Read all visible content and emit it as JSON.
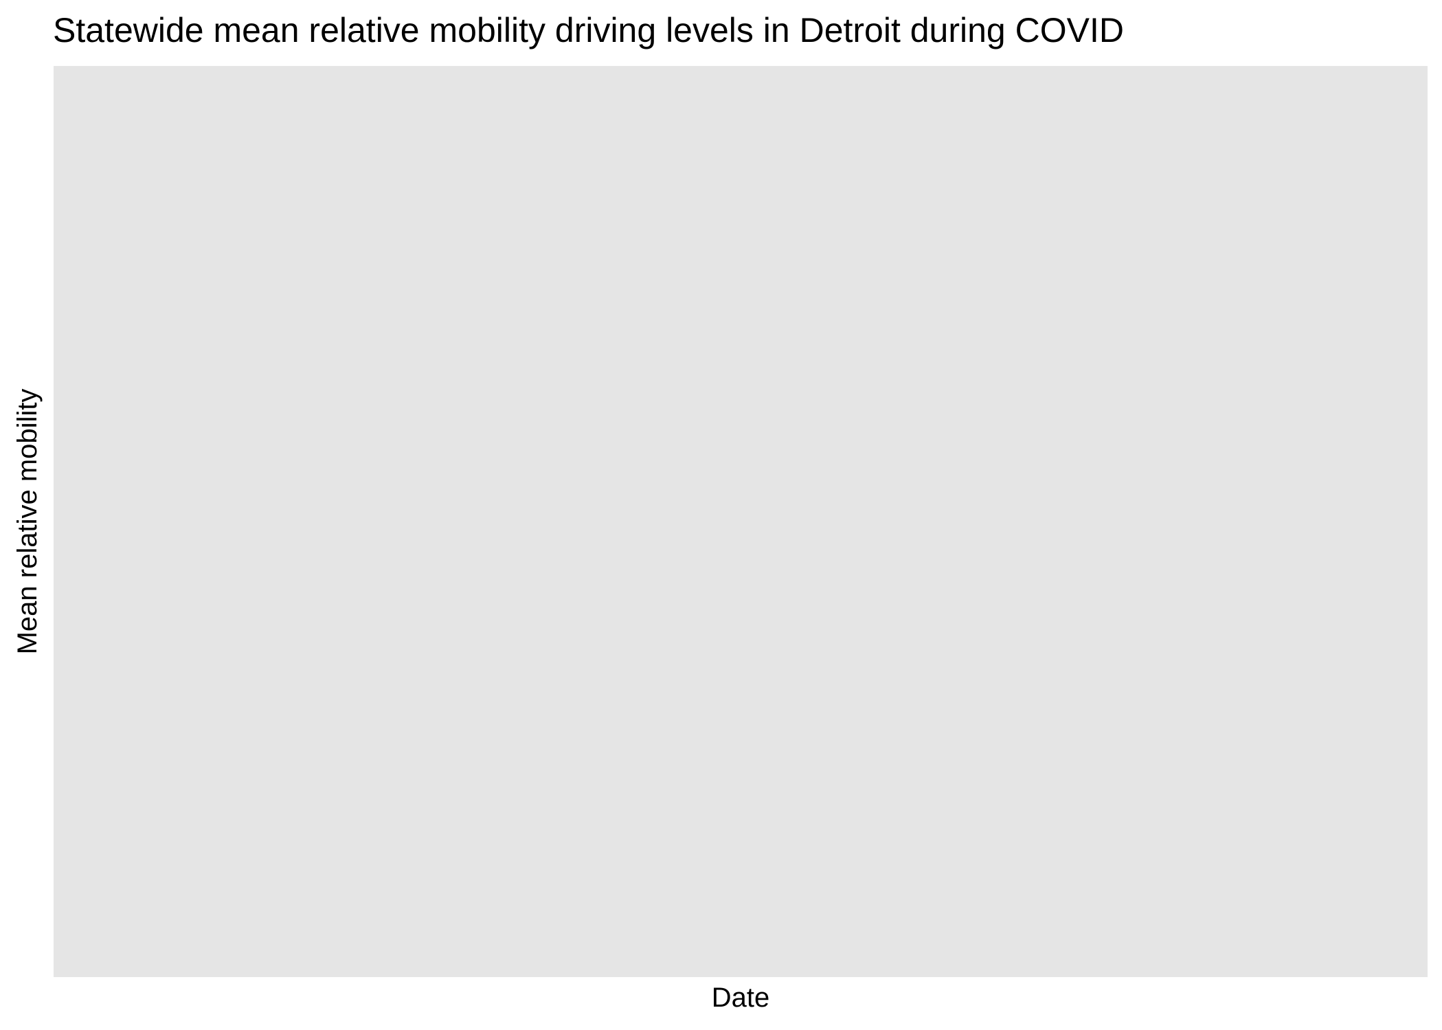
{
  "chart_data": {
    "type": "line",
    "title": "Statewide mean relative mobility driving levels in Detroit during COVID",
    "xlabel": "Date",
    "ylabel": "Mean relative mobility",
    "series": [],
    "grid": false,
    "legend": "none",
    "colors": {
      "panel_background": "#e5e5e5",
      "page_background": "#ffffff",
      "text": "#000000"
    }
  }
}
